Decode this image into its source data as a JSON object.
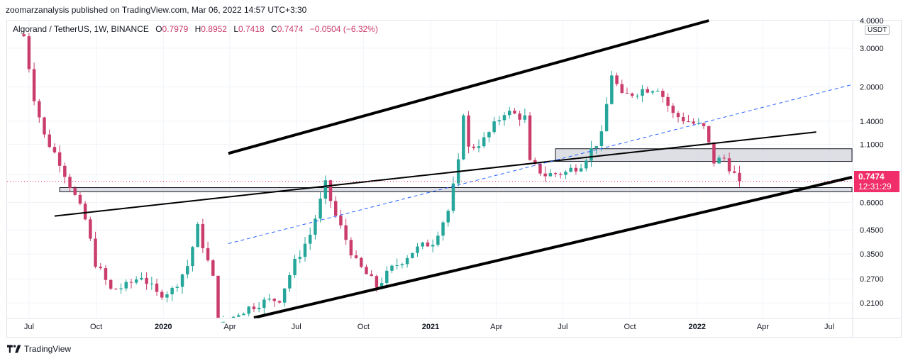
{
  "header": {
    "publisher": "zoomarzanalysis published on TradingView.com, Mar 06, 2022 14:57 UTC+3:30"
  },
  "legend": {
    "symbol": "Algorand / TetherUS, 1W, BINANCE",
    "open_label": "O",
    "open": "0.7979",
    "high_label": "H",
    "high": "0.8952",
    "low_label": "L",
    "low": "0.7418",
    "close_label": "C",
    "close": "0.7474",
    "change": "−0.0504 (−6.32%)"
  },
  "price_axis": {
    "unit": "USDT",
    "last_price": "0.7474",
    "countdown": "12:31:29"
  },
  "brand": {
    "name": "TradingView",
    "icon": "tradingview-logo-icon"
  },
  "colors": {
    "up": "#26a69a",
    "down": "#ca3d6b",
    "last_price": "#ef2e6a",
    "dashed_trend": "#2962ff",
    "zone_fill": "#d1d4dc"
  },
  "chart_data": {
    "type": "candlestick",
    "interval": "1W",
    "y_scale": "log",
    "ylim": [
      0.18,
      4.0
    ],
    "x_range": [
      "2019-06-01",
      "2022-08-01"
    ],
    "x_ticks": [
      {
        "label": "Jul",
        "date": "2019-07-01"
      },
      {
        "label": "Oct",
        "date": "2019-10-01"
      },
      {
        "label": "2020",
        "date": "2020-01-01",
        "bold": true
      },
      {
        "label": "Apr",
        "date": "2020-04-01"
      },
      {
        "label": "Jul",
        "date": "2020-07-01"
      },
      {
        "label": "Oct",
        "date": "2020-10-01"
      },
      {
        "label": "2021",
        "date": "2021-01-01",
        "bold": true
      },
      {
        "label": "Apr",
        "date": "2021-04-01"
      },
      {
        "label": "Jul",
        "date": "2021-07-01"
      },
      {
        "label": "Oct",
        "date": "2021-10-01"
      },
      {
        "label": "2022",
        "date": "2022-01-01",
        "bold": true
      },
      {
        "label": "Apr",
        "date": "2022-04-01"
      },
      {
        "label": "Jul",
        "date": "2022-07-01"
      }
    ],
    "y_ticks": [
      "4.0000",
      "3.0000",
      "2.0000",
      "1.4000",
      "1.1000",
      "0.8000",
      "0.6000",
      "0.4500",
      "0.3500",
      "0.2700",
      "0.2100"
    ],
    "last_price": 0.7474,
    "anchors": [
      [
        "2019-06-24",
        3.4
      ],
      [
        "2019-07-08",
        1.8
      ],
      [
        "2019-07-22",
        1.2
      ],
      [
        "2019-08-12",
        0.92
      ],
      [
        "2019-08-26",
        0.72
      ],
      [
        "2019-09-16",
        0.5
      ],
      [
        "2019-09-30",
        0.32
      ],
      [
        "2019-10-21",
        0.24
      ],
      [
        "2019-11-11",
        0.25
      ],
      [
        "2019-12-02",
        0.28
      ],
      [
        "2019-12-23",
        0.23
      ],
      [
        "2020-01-13",
        0.24
      ],
      [
        "2020-02-03",
        0.31
      ],
      [
        "2020-02-17",
        0.46
      ],
      [
        "2020-03-09",
        0.27
      ],
      [
        "2020-03-16",
        0.16
      ],
      [
        "2020-04-13",
        0.19
      ],
      [
        "2020-05-11",
        0.21
      ],
      [
        "2020-06-08",
        0.22
      ],
      [
        "2020-06-29",
        0.32
      ],
      [
        "2020-07-20",
        0.43
      ],
      [
        "2020-08-10",
        0.72
      ],
      [
        "2020-08-24",
        0.52
      ],
      [
        "2020-09-21",
        0.32
      ],
      [
        "2020-10-19",
        0.25
      ],
      [
        "2020-11-09",
        0.3
      ],
      [
        "2020-12-07",
        0.36
      ],
      [
        "2021-01-04",
        0.4
      ],
      [
        "2021-01-25",
        0.55
      ],
      [
        "2021-02-08",
        0.9
      ],
      [
        "2021-02-15",
        1.55
      ],
      [
        "2021-02-22",
        1.05
      ],
      [
        "2021-03-15",
        1.15
      ],
      [
        "2021-04-12",
        1.55
      ],
      [
        "2021-05-10",
        1.45
      ],
      [
        "2021-05-17",
        0.9
      ],
      [
        "2021-06-07",
        0.8
      ],
      [
        "2021-07-05",
        0.82
      ],
      [
        "2021-07-26",
        0.9
      ],
      [
        "2021-08-23",
        1.2
      ],
      [
        "2021-09-06",
        2.3
      ],
      [
        "2021-09-20",
        1.8
      ],
      [
        "2021-10-18",
        1.95
      ],
      [
        "2021-11-08",
        2.0
      ],
      [
        "2021-11-29",
        1.5
      ],
      [
        "2021-12-20",
        1.4
      ],
      [
        "2022-01-10",
        1.3
      ],
      [
        "2022-01-24",
        0.92
      ],
      [
        "2022-02-07",
        0.95
      ],
      [
        "2022-02-21",
        0.8
      ],
      [
        "2022-02-28",
        0.7474
      ]
    ],
    "drawings": [
      {
        "kind": "channel-upper",
        "from": [
          "2020-03-30",
          1.0
        ],
        "to": [
          "2022-01-17",
          4.0
        ]
      },
      {
        "kind": "channel-lower",
        "from": [
          "2020-05-04",
          0.18
        ],
        "to": [
          "2022-08-01",
          0.78
        ]
      },
      {
        "kind": "trendline",
        "from": [
          "2019-08-05",
          0.52
        ],
        "to": [
          "2022-06-13",
          1.25
        ]
      },
      {
        "kind": "dashed-trendline",
        "from": [
          "2020-03-30",
          0.39
        ],
        "to": [
          "2022-08-01",
          2.05
        ]
      },
      {
        "kind": "support-zone",
        "from_date": "2019-08-12",
        "to_date": "2022-08-01",
        "low": 0.67,
        "high": 0.7
      },
      {
        "kind": "resistance-zone",
        "from_date": "2021-06-21",
        "to_date": "2022-08-01",
        "low": 0.92,
        "high": 1.05
      }
    ]
  }
}
